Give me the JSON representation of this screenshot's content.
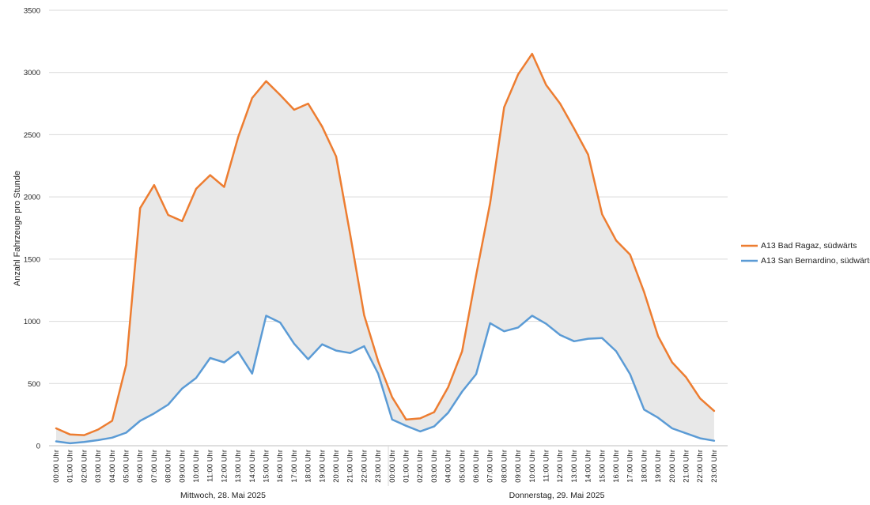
{
  "chart_data": {
    "type": "line",
    "ylabel": "Anzahl Fahrzeuge pro Stunde",
    "ylim": [
      0,
      3500
    ],
    "yticks": [
      0,
      500,
      1000,
      1500,
      2000,
      2500,
      3000,
      3500
    ],
    "grid": "horizontal",
    "legend_position": "right",
    "fill_between_series": true,
    "day_labels": [
      "Mittwoch, 28. Mai 2025",
      "Donnerstag, 29. Mai 2025"
    ],
    "x": [
      "00:00 Uhr",
      "01:00 Uhr",
      "02:00 Uhr",
      "03:00 Uhr",
      "04:00 Uhr",
      "05:00 Uhr",
      "06:00 Uhr",
      "07:00 Uhr",
      "08:00 Uhr",
      "09:00 Uhr",
      "10:00 Uhr",
      "11:00 Uhr",
      "12:00 Uhr",
      "13:00 Uhr",
      "14:00 Uhr",
      "15:00 Uhr",
      "16:00 Uhr",
      "17:00 Uhr",
      "18:00 Uhr",
      "19:00 Uhr",
      "20:00 Uhr",
      "21:00 Uhr",
      "22:00 Uhr",
      "23:00 Uhr",
      "00:00 Uhr",
      "01:00 Uhr",
      "02:00 Uhr",
      "03:00 Uhr",
      "04:00 Uhr",
      "05:00 Uhr",
      "06:00 Uhr",
      "07:00 Uhr",
      "08:00 Uhr",
      "09:00 Uhr",
      "10:00 Uhr",
      "11:00 Uhr",
      "12:00 Uhr",
      "13:00 Uhr",
      "14:00 Uhr",
      "15:00 Uhr",
      "16:00 Uhr",
      "17:00 Uhr",
      "18:00 Uhr",
      "19:00 Uhr",
      "20:00 Uhr",
      "21:00 Uhr",
      "22:00 Uhr",
      "23:00 Uhr"
    ],
    "series": [
      {
        "name": "A13 Bad Ragaz, südwärts",
        "color": "#ED7D31",
        "values": [
          140,
          90,
          85,
          130,
          200,
          650,
          1910,
          2095,
          1855,
          1805,
          2065,
          2175,
          2080,
          2480,
          2795,
          2930,
          2820,
          2700,
          2750,
          2565,
          2325,
          1700,
          1050,
          680,
          390,
          210,
          220,
          270,
          470,
          760,
          1370,
          1950,
          2720,
          2985,
          3150,
          2900,
          2750,
          2550,
          2340,
          1860,
          1650,
          1535,
          1235,
          880,
          670,
          550,
          380,
          280
        ]
      },
      {
        "name": "A13 San Bernardino, südwärts",
        "color": "#5B9BD5",
        "values": [
          35,
          20,
          30,
          45,
          65,
          105,
          200,
          260,
          330,
          460,
          545,
          705,
          670,
          755,
          580,
          1045,
          990,
          820,
          695,
          815,
          765,
          745,
          800,
          580,
          210,
          160,
          115,
          155,
          265,
          435,
          575,
          985,
          920,
          950,
          1045,
          980,
          890,
          840,
          860,
          865,
          760,
          575,
          290,
          225,
          140,
          100,
          60,
          40
        ]
      }
    ]
  }
}
